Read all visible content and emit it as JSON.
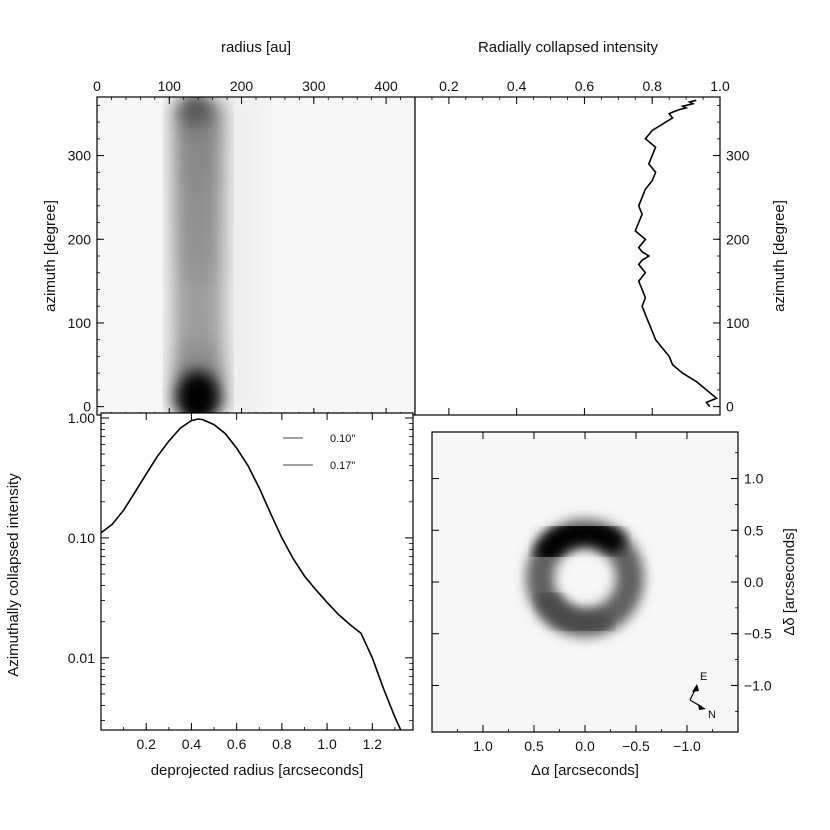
{
  "chart_data": [
    {
      "id": "polar_map",
      "type": "heatmap",
      "title": "",
      "xlabel_top": "radius [au]",
      "ylabel": "azimuth [degree]",
      "x_ticks": [
        0,
        100,
        200,
        300,
        400
      ],
      "y_ticks": [
        0,
        100,
        200,
        300
      ],
      "xlim": [
        0,
        440
      ],
      "ylim": [
        -10,
        370
      ],
      "colormap": "grayscale (dark = high intensity)",
      "ring_radius_au": 140,
      "ring_width_au": 70,
      "brightness_vs_azimuth": [
        {
          "azimuth": 0,
          "level": 1.0
        },
        {
          "azimuth": 20,
          "level": 1.0
        },
        {
          "azimuth": 50,
          "level": 0.7
        },
        {
          "azimuth": 80,
          "level": 0.58
        },
        {
          "azimuth": 120,
          "level": 0.52
        },
        {
          "azimuth": 150,
          "level": 0.55
        },
        {
          "azimuth": 180,
          "level": 0.62
        },
        {
          "azimuth": 220,
          "level": 0.6
        },
        {
          "azimuth": 270,
          "level": 0.66
        },
        {
          "azimuth": 320,
          "level": 0.68
        },
        {
          "azimuth": 360,
          "level": 0.72
        }
      ]
    },
    {
      "id": "radial_profile",
      "type": "line",
      "title": "",
      "xlabel_top": "Radially collapsed intensity",
      "ylabel_right": "azimuth [degree]",
      "x_ticks": [
        0.2,
        0.4,
        0.6,
        0.8,
        1.0
      ],
      "y_ticks": [
        0,
        100,
        200,
        300
      ],
      "xlim": [
        0.1,
        1.0
      ],
      "ylim": [
        -10,
        370
      ],
      "series": [
        {
          "x": [
            0.97,
            0.96,
            0.99,
            0.96,
            0.93,
            0.89,
            0.86,
            0.85,
            0.83,
            0.81,
            0.8,
            0.79,
            0.78,
            0.77,
            0.78,
            0.77,
            0.76,
            0.78,
            0.76,
            0.77,
            0.79,
            0.77,
            0.76,
            0.78,
            0.75,
            0.76,
            0.77,
            0.76,
            0.77,
            0.78,
            0.8,
            0.81,
            0.79,
            0.8,
            0.81,
            0.78,
            0.8,
            0.82,
            0.84,
            0.86,
            0.85,
            0.86,
            0.88,
            0.9,
            0.89,
            0.92,
            0.91,
            0.93
          ],
          "y": [
            0,
            5,
            10,
            20,
            30,
            40,
            50,
            60,
            70,
            80,
            90,
            100,
            110,
            120,
            130,
            140,
            150,
            160,
            170,
            175,
            180,
            185,
            190,
            200,
            210,
            220,
            230,
            240,
            250,
            260,
            270,
            280,
            290,
            300,
            310,
            320,
            330,
            335,
            340,
            345,
            350,
            352,
            355,
            357,
            359,
            362,
            364,
            366
          ]
        }
      ]
    },
    {
      "id": "azimuthal_profile",
      "type": "line",
      "title": "",
      "xlabel": "deprojected radius [arcseconds]",
      "ylabel": "Azimuthally collapsed intensity",
      "yscale": "log",
      "x_ticks": [
        0.2,
        0.4,
        0.6,
        0.8,
        1.0,
        1.2
      ],
      "y_tick_labels": [
        "1.00",
        "0.10",
        "0.01"
      ],
      "y_tick_values": [
        1.0,
        0.1,
        0.01
      ],
      "xlim": [
        0.0,
        1.38
      ],
      "ylim": [
        0.0025,
        1.1
      ],
      "legend": {
        "placement": "top-right",
        "entries": [
          "0.10\"",
          "0.17\""
        ]
      },
      "series": [
        {
          "x": [
            0.0,
            0.05,
            0.1,
            0.15,
            0.2,
            0.25,
            0.3,
            0.35,
            0.4,
            0.43,
            0.45,
            0.5,
            0.55,
            0.6,
            0.65,
            0.7,
            0.75,
            0.8,
            0.85,
            0.9,
            0.95,
            1.0,
            1.05,
            1.1,
            1.15,
            1.2,
            1.25,
            1.3,
            1.33
          ],
          "y": [
            0.11,
            0.13,
            0.17,
            0.24,
            0.34,
            0.48,
            0.64,
            0.82,
            0.95,
            0.98,
            0.97,
            0.88,
            0.74,
            0.56,
            0.4,
            0.26,
            0.16,
            0.1,
            0.067,
            0.048,
            0.037,
            0.029,
            0.023,
            0.019,
            0.016,
            0.01,
            0.0055,
            0.0032,
            0.0024
          ]
        }
      ]
    },
    {
      "id": "sky_image",
      "type": "heatmap",
      "title": "",
      "xlabel": "Δα  [arcseconds]",
      "ylabel_right": "Δδ  [arcseconds]",
      "x_ticks": [
        1.0,
        0.5,
        0.0,
        -0.5,
        -1.0
      ],
      "x_tick_labels": [
        "1.0",
        "0.5",
        "0.0",
        "−0.5",
        "−1.0"
      ],
      "y_ticks": [
        1.0,
        0.5,
        0.0,
        -0.5,
        -1.0
      ],
      "y_tick_labels": [
        "1.0",
        "0.5",
        "0.0",
        "−0.5",
        "−1.0"
      ],
      "xlim": [
        1.5,
        -1.5
      ],
      "ylim": [
        -1.45,
        1.45
      ],
      "colormap": "grayscale (dark = high intensity)",
      "ring": {
        "center_x": 0.0,
        "center_y": 0.0,
        "radius_arcsec": 0.43,
        "brightest_side": "north-east (upper left)"
      },
      "compass": {
        "labels": [
          "E",
          "N"
        ],
        "placement": "bottom-right"
      }
    }
  ]
}
